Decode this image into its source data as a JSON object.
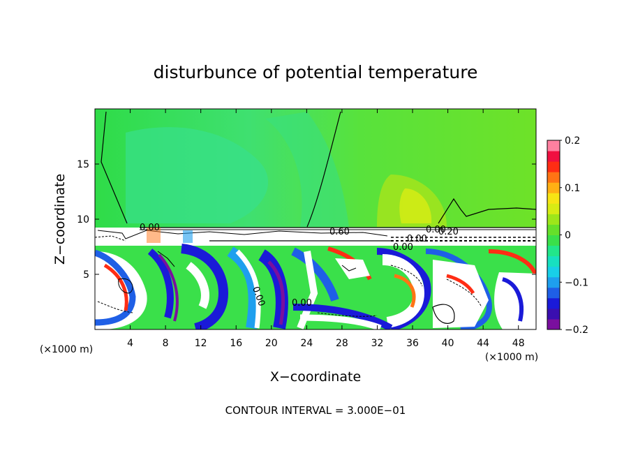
{
  "chart_data": {
    "type": "heatmap",
    "title": "disturbunce of potential temperature",
    "xlabel": "X−coordinate",
    "ylabel": "Z−coordinate",
    "x_unit": "(×1000 m)",
    "z_unit": "(×1000 m)",
    "xlim": [
      0,
      50
    ],
    "ylim": [
      0,
      20
    ],
    "x_ticks": [
      4,
      8,
      12,
      16,
      20,
      24,
      28,
      32,
      36,
      40,
      44,
      48
    ],
    "y_ticks": [
      5,
      10,
      15
    ],
    "colorbar": {
      "min": -0.2,
      "max": 0.2,
      "ticks": [
        {
          "value": 0.2,
          "label": "0.2"
        },
        {
          "value": 0.1,
          "label": "0.1"
        },
        {
          "value": 0.0,
          "label": "0"
        },
        {
          "value": -0.1,
          "label": "−0.1"
        },
        {
          "value": -0.2,
          "label": "−0.2"
        }
      ],
      "colors": [
        "#7a0f9e",
        "#3a0fb0",
        "#1a1ad8",
        "#1f5fe6",
        "#1e9fee",
        "#18cfe8",
        "#17e0c0",
        "#22e68a",
        "#3ae04a",
        "#66e02a",
        "#9ee61a",
        "#d8ec14",
        "#f7e514",
        "#ffb014",
        "#ff7414",
        "#ff2d14",
        "#f01040",
        "#ff80a0"
      ]
    },
    "contour_labels": [
      "0.00",
      "0.60",
      "0.00",
      "0.00",
      "0.00",
      "0.20",
      "0.00",
      "0.00"
    ],
    "contour_interval": "CONTOUR INTERVAL = 3.000E−01"
  }
}
